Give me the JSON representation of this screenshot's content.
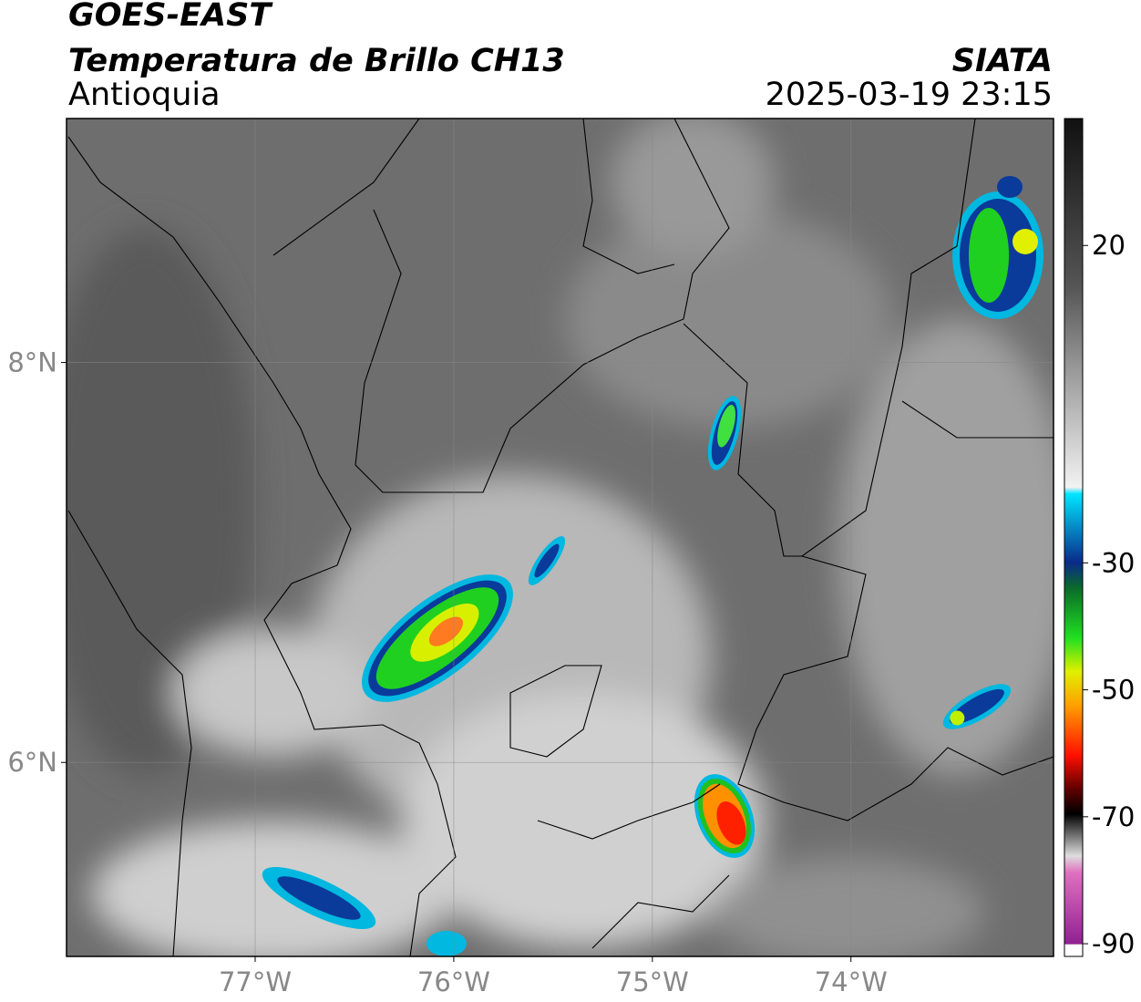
{
  "header": {
    "satellite": "GOES-EAST",
    "product": "Temperatura de Brillo CH13",
    "region": "Antioquia",
    "agency": "SIATA",
    "datetime": "2025-03-19 23:15"
  },
  "map": {
    "lonlim": [
      -77.95,
      -72.98
    ],
    "latlim": [
      5.03,
      9.22
    ],
    "xticks": [
      {
        "value": -77,
        "label": "77°W"
      },
      {
        "value": -76,
        "label": "76°W"
      },
      {
        "value": -75,
        "label": "75°W"
      },
      {
        "value": -74,
        "label": "74°W"
      }
    ],
    "yticks": [
      {
        "value": 8,
        "label": "8°N"
      },
      {
        "value": 6,
        "label": "6°N"
      }
    ]
  },
  "colorbar": {
    "lim": [
      -92,
      40
    ],
    "ticks": [
      20,
      -30,
      -50,
      -70,
      -90
    ]
  }
}
